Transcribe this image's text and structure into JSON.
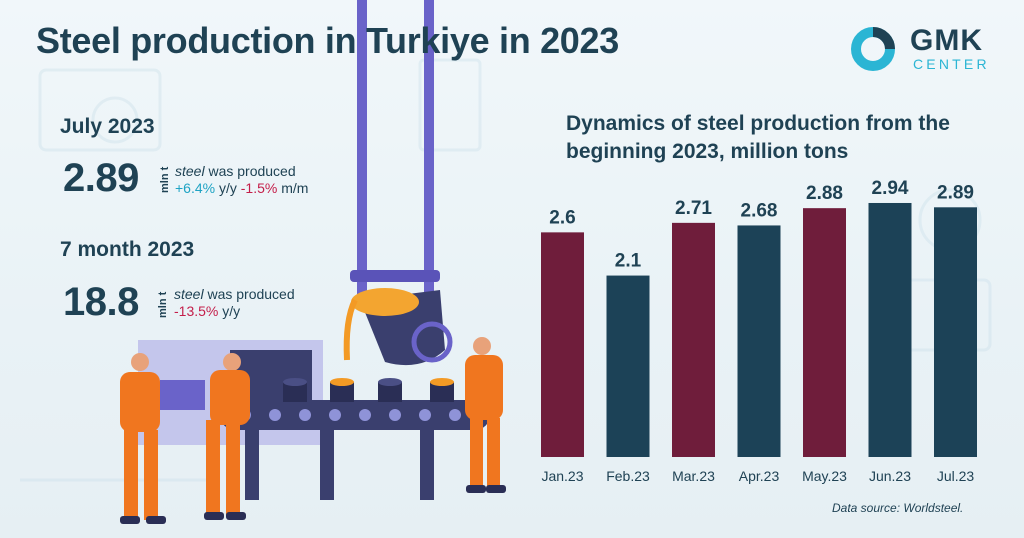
{
  "title": "Steel production in Turkiye in 2023",
  "logo": {
    "top": "GMK",
    "bottom": "CENTER"
  },
  "july": {
    "label": "July 2023",
    "value": "2.89",
    "unit": "mln t",
    "desc_italic": "steel",
    "desc_rest": " was produced",
    "yy": "+6.4%",
    "yy_suffix": " y/y ",
    "mm": "-1.5%",
    "mm_suffix": " m/m"
  },
  "seven": {
    "label": "7 month 2023",
    "value": "18.8",
    "unit": "mln t",
    "desc_italic": "steel",
    "desc_rest": " was produced",
    "yy": "-13.5%",
    "yy_suffix": " y/y"
  },
  "colors": {
    "maroon": "#6f1d3b",
    "navy": "#1c4257",
    "accent": "#1ea3c4",
    "negative": "#c41e4a"
  },
  "chart_data": {
    "type": "bar",
    "title": "Dynamics of steel production from the beginning 2023, million tons",
    "categories": [
      "Jan.23",
      "Feb.23",
      "Mar.23",
      "Apr.23",
      "May.23",
      "Jun.23",
      "Jul.23"
    ],
    "values": [
      2.6,
      2.1,
      2.71,
      2.68,
      2.88,
      2.94,
      2.89
    ],
    "value_labels": [
      "2.6",
      "2.1",
      "2.71",
      "2.68",
      "2.88",
      "2.94",
      "2.89"
    ],
    "bar_colors": [
      "#6f1d3b",
      "#1c4257",
      "#6f1d3b",
      "#1c4257",
      "#6f1d3b",
      "#1c4257",
      "#1c4257"
    ],
    "xlabel": "",
    "ylabel": "",
    "ylim": [
      0,
      3.0
    ],
    "grid": false
  },
  "source": "Data source:  Worldsteel."
}
